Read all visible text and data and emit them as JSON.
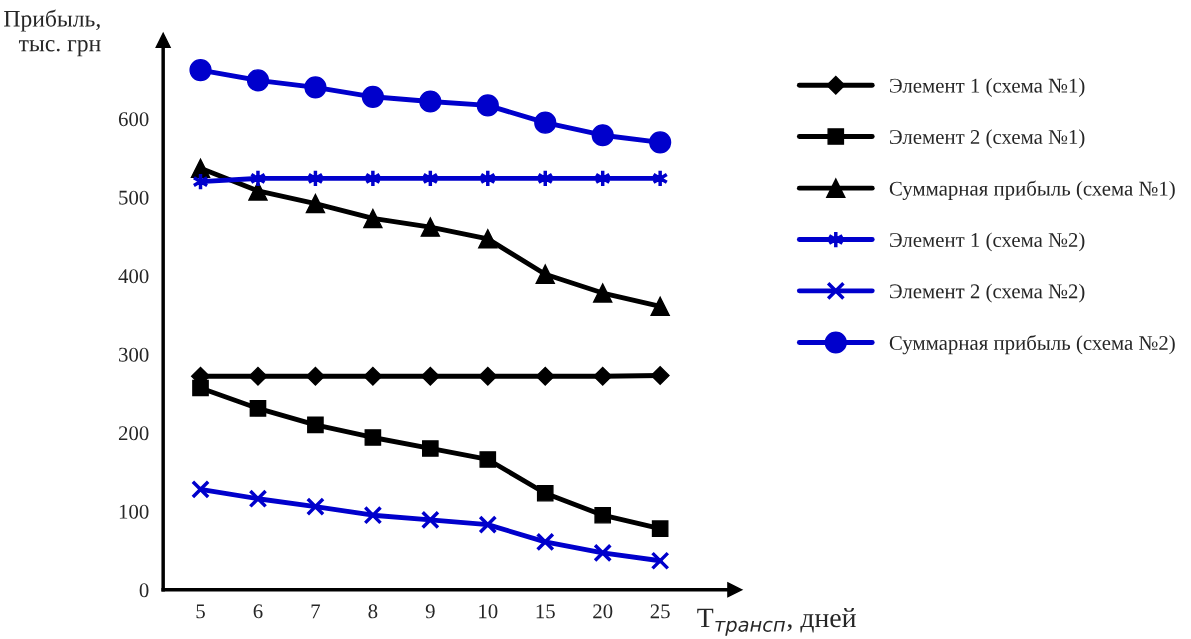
{
  "chart_data": {
    "type": "line",
    "ylabel": "Прибыль,\nтыс. грн",
    "xlabel": "T$_{трансп}$, дней",
    "categories": [
      "5",
      "6",
      "7",
      "8",
      "9",
      "10",
      "15",
      "20",
      "25"
    ],
    "ylim": [
      0,
      700
    ],
    "yticks": [
      0,
      100,
      200,
      300,
      400,
      500,
      600
    ],
    "grid": false,
    "legend": "right",
    "series": [
      {
        "name": "Элемент 1 (схема №1)",
        "color": "#000000",
        "marker": "diamond",
        "values": [
          272,
          272,
          272,
          272,
          272,
          272,
          272,
          272,
          273
        ]
      },
      {
        "name": "Элемент 2 (схема №1)",
        "color": "#000000",
        "marker": "square",
        "values": [
          257,
          231,
          210,
          194,
          180,
          166,
          123,
          95,
          78
        ]
      },
      {
        "name": "Суммарная прибыль (схема №1)",
        "color": "#000000",
        "marker": "triangle",
        "values": [
          537,
          508,
          492,
          473,
          462,
          447,
          402,
          378,
          361
        ]
      },
      {
        "name": "Элемент 1 (схема №2)",
        "color": "#0000cc",
        "marker": "cross",
        "values": [
          520,
          524,
          524,
          524,
          524,
          524,
          524,
          524,
          524
        ]
      },
      {
        "name": "Элемент 2 (схема №2)",
        "color": "#0000cc",
        "marker": "cross",
        "values": [
          128,
          116,
          106,
          95,
          89,
          83,
          61,
          47,
          37
        ]
      },
      {
        "name": "Суммарная прибыль (схема №2)",
        "color": "#0000cc",
        "marker": "circle",
        "values": [
          662,
          649,
          640,
          628,
          622,
          617,
          595,
          579,
          570
        ]
      }
    ]
  }
}
